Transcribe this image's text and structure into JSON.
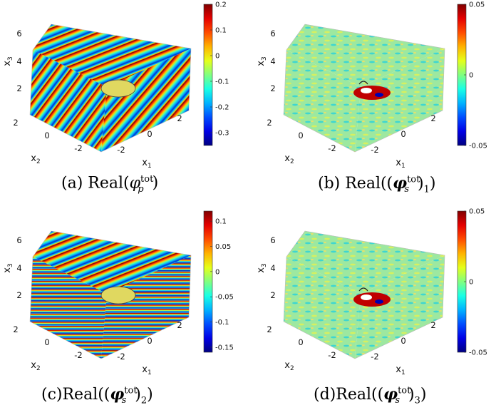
{
  "chart_data": [
    {
      "type": "heatmap",
      "panel": "a",
      "caption": {
        "prefix": "(a) Real(",
        "symbol": "φ",
        "symbol_sub": "p",
        "sup": "tot",
        "suffix": ")"
      },
      "pattern": "planar p-wave, long wavelength, diagonal bands",
      "xlabel": "x",
      "xlabel_sub": "1",
      "ylabel": "x",
      "ylabel_sub": "2",
      "zlabel": "x",
      "zlabel_sub": "3",
      "x_ticks": [
        "-2",
        "0",
        "2"
      ],
      "y_ticks": [
        "2",
        "0",
        "-2"
      ],
      "z_ticks": [
        "2",
        "4",
        "6"
      ],
      "colorbar": {
        "ticks": [
          "0.2",
          "0.1",
          "0",
          "-0.1",
          "-0.2",
          "-0.3"
        ],
        "clim": [
          -0.35,
          0.2
        ]
      },
      "colormap": "jet"
    },
    {
      "type": "heatmap",
      "panel": "b",
      "caption": {
        "prefix": "(b) Real((",
        "symbol": "φ",
        "symbol_sub": "s",
        "sup": "tot",
        "suffix": ")",
        "comp": "1",
        "end": ")"
      },
      "pattern": "scattered s-wave, mostly near zero with ripples",
      "xlabel": "x",
      "xlabel_sub": "1",
      "ylabel": "x",
      "ylabel_sub": "2",
      "zlabel": "x",
      "zlabel_sub": "3",
      "x_ticks": [
        "-2",
        "0",
        "2"
      ],
      "y_ticks": [
        "2",
        "0",
        "-2"
      ],
      "z_ticks": [
        "2",
        "4",
        "6"
      ],
      "colorbar": {
        "ticks": [
          "0.05",
          "0",
          "-0.05"
        ],
        "clim": [
          -0.05,
          0.05
        ]
      },
      "colormap": "jet"
    },
    {
      "type": "heatmap",
      "panel": "c",
      "caption": {
        "prefix": "(c)Real((",
        "symbol": "φ",
        "symbol_sub": "s",
        "sup": "tot",
        "suffix": ")",
        "comp": "2",
        "end": ")"
      },
      "pattern": "planar s-wave, short wavelength, horizontal bands",
      "xlabel": "x",
      "xlabel_sub": "1",
      "ylabel": "x",
      "ylabel_sub": "2",
      "zlabel": "x",
      "zlabel_sub": "3",
      "x_ticks": [
        "-2",
        "0",
        "2"
      ],
      "y_ticks": [
        "2",
        "0",
        "-2"
      ],
      "z_ticks": [
        "2",
        "4",
        "6"
      ],
      "colorbar": {
        "ticks": [
          "0.1",
          "0.05",
          "0",
          "-0.05",
          "-0.1",
          "-0.15"
        ],
        "clim": [
          -0.16,
          0.12
        ]
      },
      "colormap": "jet"
    },
    {
      "type": "heatmap",
      "panel": "d",
      "caption": {
        "prefix": "(d)Real((",
        "symbol": "φ",
        "symbol_sub": "s",
        "sup": "tot",
        "suffix": ")",
        "comp": "3",
        "end": ")"
      },
      "pattern": "scattered s-wave, mostly near zero with ripples",
      "xlabel": "x",
      "xlabel_sub": "1",
      "ylabel": "x",
      "ylabel_sub": "2",
      "zlabel": "x",
      "zlabel_sub": "3",
      "x_ticks": [
        "-2",
        "0",
        "2"
      ],
      "y_ticks": [
        "2",
        "0",
        "-2"
      ],
      "z_ticks": [
        "2",
        "4",
        "6"
      ],
      "colorbar": {
        "ticks": [
          "0.05",
          "0",
          "-0.05"
        ],
        "clim": [
          -0.05,
          0.05
        ]
      },
      "colormap": "jet"
    }
  ]
}
